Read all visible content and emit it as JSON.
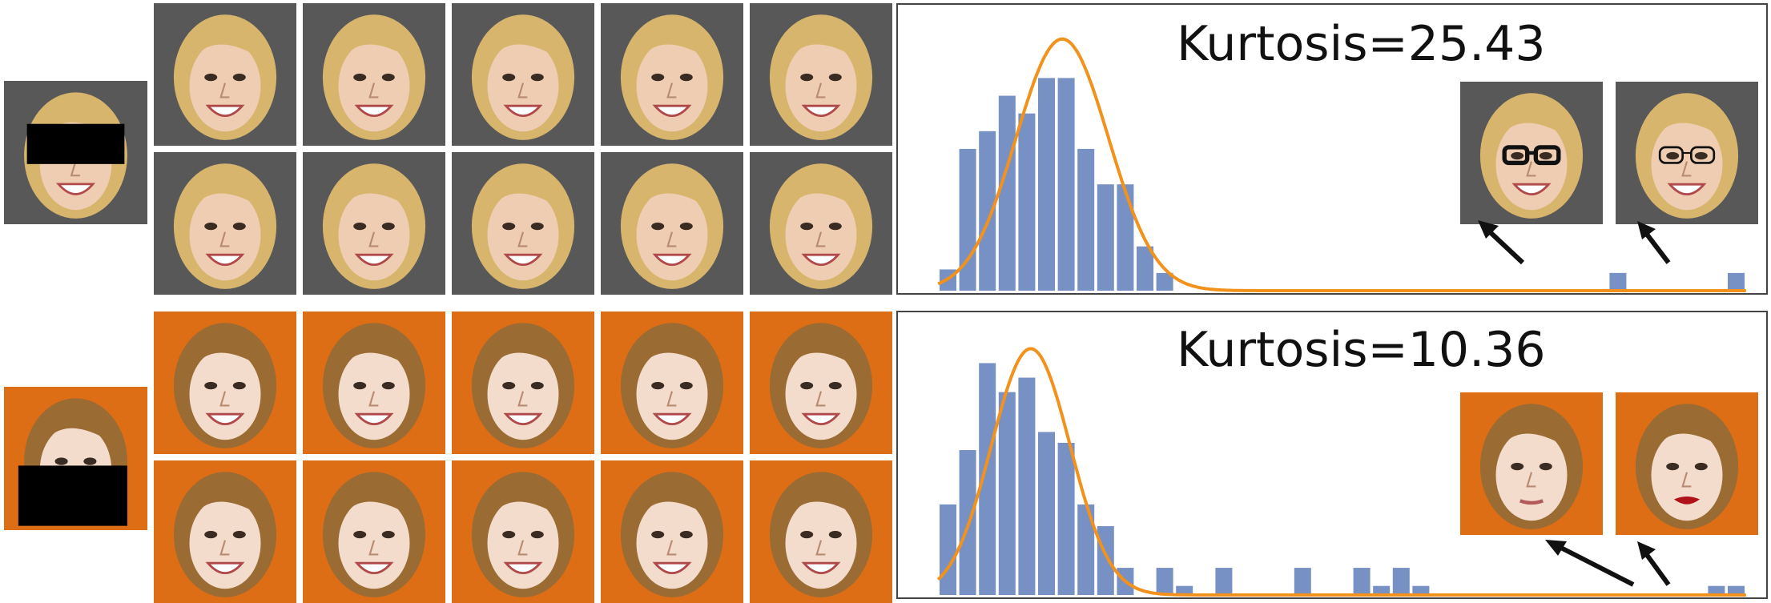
{
  "colors": {
    "bar": "#7891c5",
    "curve": "#f2921c",
    "gray_bg": "#585858",
    "orange_bg": "#dd6e16",
    "hair_blonde": "#d8b56c",
    "hair_dark": "#9a6b33",
    "skin": "#efcdb2",
    "skin_pale": "#f3dccc",
    "censor": "#000000",
    "arrow": "#111111"
  },
  "rows": [
    {
      "kurtosis_label": "Kurtosis=25.43",
      "theme": "gray",
      "input_face": {
        "icon": "masked-face",
        "mask": "eyes"
      },
      "grid_faces": [
        "smiling-face",
        "smiling-face",
        "smiling-face",
        "smiling-face",
        "smiling-face",
        "smiling-face",
        "smiling-face",
        "smiling-face",
        "smiling-face",
        "smiling-face"
      ],
      "outlier_faces": [
        {
          "icon": "face-with-thick-glasses"
        },
        {
          "icon": "face-with-thin-glasses"
        }
      ]
    },
    {
      "kurtosis_label": "Kurtosis=10.36",
      "theme": "orange",
      "input_face": {
        "icon": "masked-face",
        "mask": "mouth"
      },
      "grid_faces": [
        "smiling-face",
        "smiling-face",
        "smiling-face",
        "smiling-face",
        "smiling-face",
        "smiling-face",
        "smiling-face",
        "smiling-face",
        "smiling-face",
        "smiling-face"
      ],
      "outlier_faces": [
        {
          "icon": "neutral-face"
        },
        {
          "icon": "face-with-red-lips"
        }
      ]
    }
  ],
  "chart_data": [
    {
      "type": "bar",
      "title": "Kurtosis=25.43",
      "x": [
        0,
        1,
        2,
        3,
        4,
        5,
        6,
        7,
        8,
        9,
        10,
        11,
        12,
        13,
        14,
        15,
        16,
        17,
        18,
        19,
        20,
        21,
        22,
        23,
        24,
        25,
        26,
        27,
        28,
        29,
        30,
        31,
        32,
        33,
        34,
        35,
        36,
        37,
        38,
        39,
        40
      ],
      "values": [
        0.12,
        0.8,
        0.9,
        1.1,
        1.0,
        1.2,
        1.2,
        0.8,
        0.6,
        0.6,
        0.25,
        0.1,
        0,
        0,
        0,
        0,
        0,
        0,
        0,
        0,
        0,
        0,
        0,
        0,
        0,
        0,
        0,
        0,
        0,
        0,
        0,
        0,
        0,
        0,
        0.1,
        0,
        0,
        0,
        0,
        0,
        0.1
      ],
      "curve": {
        "type": "gaussian-fit",
        "peak": 1.42,
        "mean": 5.8,
        "sd": 2.35
      },
      "ylim": [
        0,
        1.5
      ],
      "grid": false,
      "legend": "none"
    },
    {
      "type": "bar",
      "title": "Kurtosis=10.36",
      "x": [
        0,
        1,
        2,
        3,
        4,
        5,
        6,
        7,
        8,
        9,
        10,
        11,
        12,
        13,
        14,
        15,
        16,
        17,
        18,
        19,
        20,
        21,
        22,
        23,
        24,
        25,
        26,
        27,
        28,
        29,
        30,
        31,
        32,
        33,
        34,
        35,
        36,
        37,
        38,
        39,
        40
      ],
      "values": [
        0.5,
        0.8,
        1.28,
        1.12,
        1.2,
        0.9,
        0.84,
        0.5,
        0.38,
        0.15,
        0,
        0.15,
        0.05,
        0,
        0.15,
        0,
        0,
        0,
        0.15,
        0,
        0,
        0.15,
        0.05,
        0.15,
        0.05,
        0,
        0,
        0,
        0,
        0,
        0,
        0,
        0,
        0,
        0,
        0,
        0,
        0,
        0,
        0.05,
        0.05
      ],
      "curve": {
        "type": "gaussian-fit",
        "peak": 1.36,
        "mean": 4.2,
        "sd": 2.0
      },
      "ylim": [
        0,
        1.45
      ],
      "grid": false,
      "legend": "none"
    }
  ]
}
